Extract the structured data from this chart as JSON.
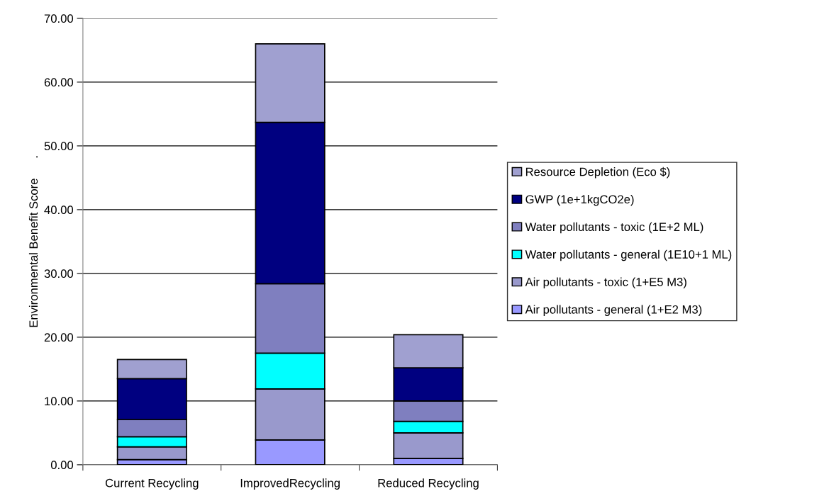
{
  "chart_data": {
    "type": "bar",
    "stacked": true,
    "ylabel": "Environmental Benefit Score      .",
    "categories": [
      "Current Recycling",
      "ImprovedRecycling",
      "Reduced Recycling"
    ],
    "series": [
      {
        "name": "Air pollutants - general (1+E2 M3)",
        "color": "#9999ff",
        "values": [
          0.8,
          3.9,
          1.0
        ]
      },
      {
        "name": "Air pollutants - toxic (1+E5 M3)",
        "color": "#9999cc",
        "values": [
          2.0,
          8.0,
          4.0
        ]
      },
      {
        "name": "Water pollutants - general (1E10+1 ML)",
        "color": "#00ffff",
        "values": [
          1.6,
          5.6,
          1.8
        ]
      },
      {
        "name": "Water pollutants - toxic (1E+2 ML)",
        "color": "#7f7fbf",
        "values": [
          2.7,
          10.9,
          3.2
        ]
      },
      {
        "name": "GWP (1e+1kgCO2e)",
        "color": "#000080",
        "values": [
          6.4,
          25.3,
          5.2
        ]
      },
      {
        "name": "Resource Depletion (Eco $)",
        "color": "#a0a0d0",
        "values": [
          3.0,
          12.3,
          5.2
        ]
      }
    ],
    "ylim": [
      0,
      70
    ],
    "yticks": [
      {
        "value": 0,
        "label": "0.00"
      },
      {
        "value": 10,
        "label": "10.00"
      },
      {
        "value": 20,
        "label": "20.00"
      },
      {
        "value": 30,
        "label": "30.00"
      },
      {
        "value": 40,
        "label": "40.00"
      },
      {
        "value": 50,
        "label": "50.00"
      },
      {
        "value": 60,
        "label": "60.00"
      },
      {
        "value": 70,
        "label": "70.00"
      }
    ],
    "grid": "y",
    "legend": "right"
  }
}
